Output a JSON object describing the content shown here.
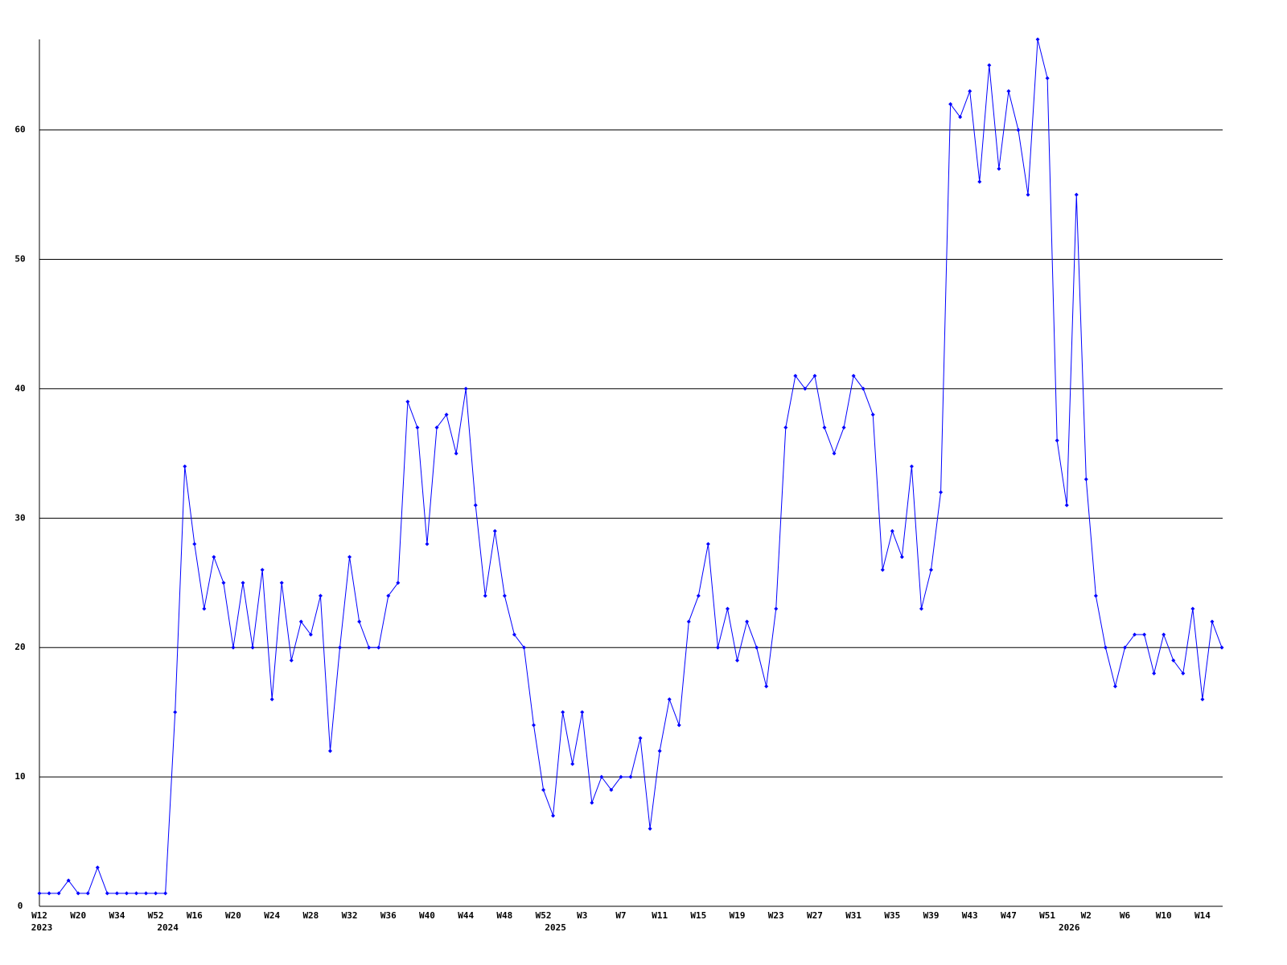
{
  "chart_data": {
    "type": "line",
    "color": "#0000ff",
    "grid": true,
    "ylim": [
      0,
      67
    ],
    "yticks": [
      0,
      10,
      20,
      30,
      40,
      50,
      60
    ],
    "categories": [
      "W12",
      null,
      null,
      null,
      "W20",
      null,
      null,
      null,
      "W34",
      null,
      null,
      null,
      "W52",
      null,
      null,
      null,
      "W16",
      null,
      null,
      null,
      "W20",
      null,
      null,
      null,
      "W24",
      null,
      null,
      null,
      "W28",
      null,
      null,
      null,
      "W32",
      null,
      null,
      null,
      "W36",
      null,
      null,
      null,
      "W40",
      null,
      null,
      null,
      "W44",
      null,
      null,
      null,
      "W48",
      null,
      null,
      null,
      "W52",
      null,
      null,
      null,
      "W3",
      null,
      null,
      null,
      "W7",
      null,
      null,
      null,
      "W11",
      null,
      null,
      null,
      "W15",
      null,
      null,
      null,
      "W19",
      null,
      null,
      null,
      "W23",
      null,
      null,
      null,
      "W27",
      null,
      null,
      null,
      "W31",
      null,
      null,
      null,
      "W35",
      null,
      null,
      null,
      "W39",
      null,
      null,
      null,
      "W43",
      null,
      null,
      null,
      "W47",
      null,
      null,
      null,
      "W51",
      null,
      null,
      null,
      "W2",
      null,
      null,
      null,
      "W6",
      null,
      null,
      null,
      "W10",
      null,
      null,
      null,
      "W14",
      null,
      null
    ],
    "years": [
      "2023",
      null,
      null,
      null,
      null,
      null,
      null,
      null,
      null,
      null,
      null,
      null,
      null,
      "2024",
      null,
      null,
      null,
      null,
      null,
      null,
      null,
      null,
      null,
      null,
      null,
      null,
      null,
      null,
      null,
      null,
      null,
      null,
      null,
      null,
      null,
      null,
      null,
      null,
      null,
      null,
      null,
      null,
      null,
      null,
      null,
      null,
      null,
      null,
      null,
      null,
      null,
      null,
      null,
      "2025",
      null,
      null,
      null,
      null,
      null,
      null,
      null,
      null,
      null,
      null,
      null,
      null,
      null,
      null,
      null,
      null,
      null,
      null,
      null,
      null,
      null,
      null,
      null,
      null,
      null,
      null,
      null,
      null,
      null,
      null,
      null,
      null,
      null,
      null,
      null,
      null,
      null,
      null,
      null,
      null,
      null,
      null,
      null,
      null,
      null,
      null,
      null,
      null,
      null,
      null,
      null,
      null,
      "2026",
      null,
      null,
      null,
      null,
      null,
      null,
      null,
      null,
      null,
      null,
      null,
      null,
      null,
      null,
      null,
      null
    ],
    "values": [
      1,
      1,
      1,
      2,
      1,
      1,
      3,
      1,
      1,
      1,
      1,
      1,
      1,
      1,
      15,
      34,
      28,
      23,
      27,
      25,
      20,
      25,
      20,
      26,
      16,
      25,
      19,
      22,
      21,
      24,
      12,
      20,
      27,
      22,
      20,
      20,
      24,
      25,
      39,
      37,
      28,
      37,
      38,
      35,
      40,
      31,
      24,
      29,
      24,
      21,
      20,
      14,
      9,
      7,
      15,
      11,
      15,
      8,
      10,
      9,
      10,
      10,
      13,
      6,
      12,
      16,
      14,
      22,
      24,
      28,
      20,
      23,
      19,
      22,
      20,
      17,
      23,
      37,
      41,
      40,
      41,
      37,
      35,
      37,
      41,
      40,
      38,
      26,
      29,
      27,
      34,
      23,
      26,
      32,
      62,
      61,
      63,
      56,
      65,
      57,
      63,
      60,
      55,
      67,
      64,
      36,
      31,
      55,
      33,
      24,
      20,
      17,
      20,
      21,
      21,
      18,
      21,
      19,
      18,
      23,
      16,
      22,
      20
    ]
  }
}
